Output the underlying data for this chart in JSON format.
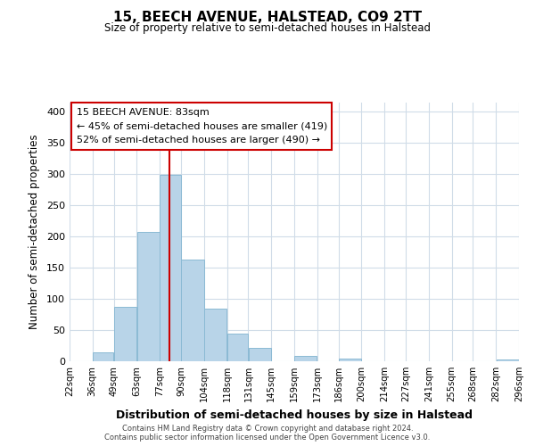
{
  "title": "15, BEECH AVENUE, HALSTEAD, CO9 2TT",
  "subtitle": "Size of property relative to semi-detached houses in Halstead",
  "xlabel": "Distribution of semi-detached houses by size in Halstead",
  "ylabel": "Number of semi-detached properties",
  "bar_edges": [
    22,
    36,
    49,
    63,
    77,
    90,
    104,
    118,
    131,
    145,
    159,
    173,
    186,
    200,
    214,
    227,
    241,
    255,
    268,
    282,
    296
  ],
  "bar_heights": [
    0,
    15,
    87,
    208,
    299,
    163,
    84,
    44,
    21,
    0,
    8,
    0,
    5,
    0,
    0,
    0,
    0,
    0,
    0,
    3
  ],
  "bar_color": "#b8d4e8",
  "bar_edgecolor": "#8bbad4",
  "vline_x": 83,
  "vline_color": "#cc0000",
  "ylim": [
    0,
    415
  ],
  "yticks": [
    0,
    50,
    100,
    150,
    200,
    250,
    300,
    350,
    400
  ],
  "tick_labels": [
    "22sqm",
    "36sqm",
    "49sqm",
    "63sqm",
    "77sqm",
    "90sqm",
    "104sqm",
    "118sqm",
    "131sqm",
    "145sqm",
    "159sqm",
    "173sqm",
    "186sqm",
    "200sqm",
    "214sqm",
    "227sqm",
    "241sqm",
    "255sqm",
    "268sqm",
    "282sqm",
    "296sqm"
  ],
  "annotation_title": "15 BEECH AVENUE: 83sqm",
  "annotation_line1": "← 45% of semi-detached houses are smaller (419)",
  "annotation_line2": "52% of semi-detached houses are larger (490) →",
  "annotation_box_color": "#ffffff",
  "annotation_box_edgecolor": "#cc0000",
  "footer1": "Contains HM Land Registry data © Crown copyright and database right 2024.",
  "footer2": "Contains public sector information licensed under the Open Government Licence v3.0.",
  "background_color": "#ffffff",
  "grid_color": "#d0dce8"
}
